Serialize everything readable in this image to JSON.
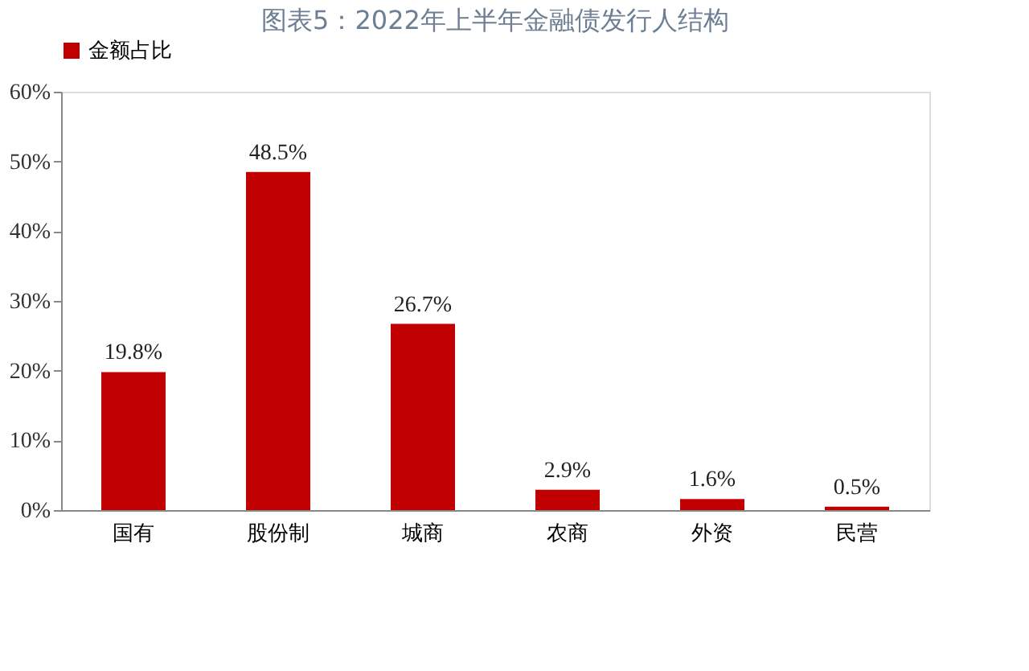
{
  "chart_data": {
    "type": "bar",
    "title": "图表5：2022年上半年金融债发行人结构",
    "categories": [
      "国有",
      "股份制",
      "城商",
      "农商",
      "外资",
      "民营"
    ],
    "series": [
      {
        "name": "金额占比",
        "color": "#c00000",
        "values": [
          19.8,
          48.5,
          26.7,
          2.9,
          1.6,
          0.5
        ],
        "value_labels": [
          "19.8%",
          "48.5%",
          "26.7%",
          "2.9%",
          "1.6%",
          "0.5%"
        ]
      }
    ],
    "ylim": [
      0,
      60
    ],
    "yticks": [
      {
        "value": 0,
        "label": "0%"
      },
      {
        "value": 10,
        "label": "10%"
      },
      {
        "value": 20,
        "label": "20%"
      },
      {
        "value": 30,
        "label": "30%"
      },
      {
        "value": 40,
        "label": "40%"
      },
      {
        "value": 50,
        "label": "50%"
      },
      {
        "value": 60,
        "label": "60%"
      }
    ],
    "grid": false,
    "legend": "top"
  }
}
